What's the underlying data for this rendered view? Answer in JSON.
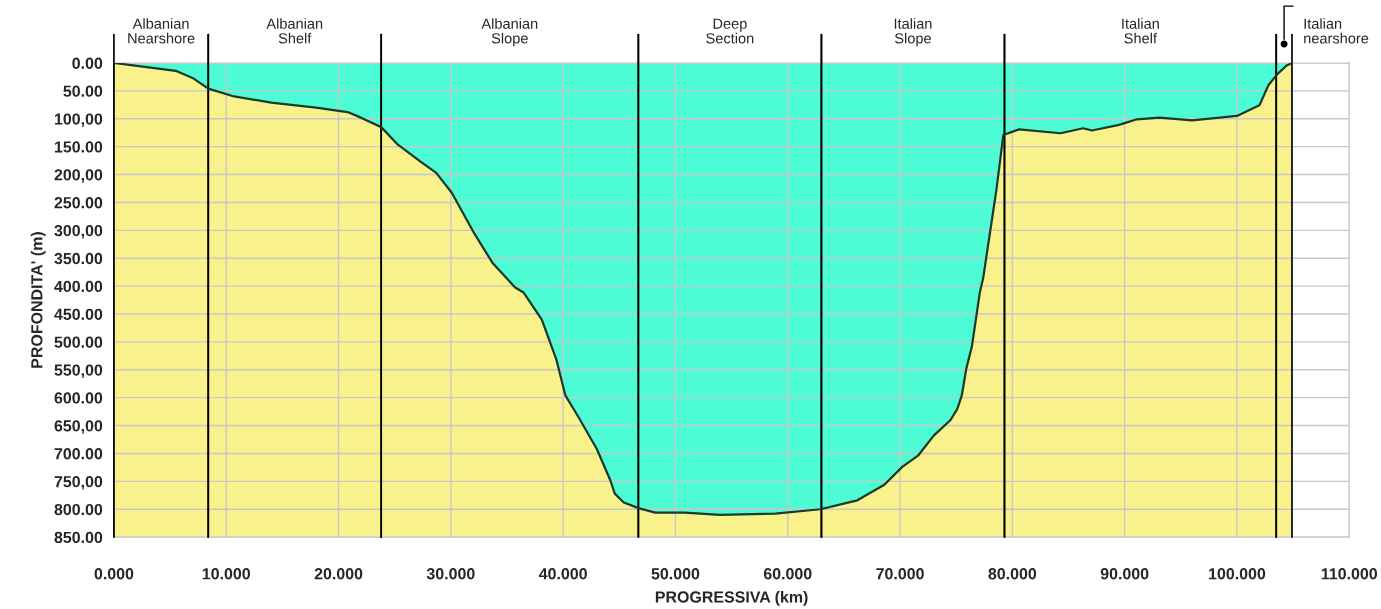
{
  "chart_data": {
    "type": "area",
    "xlabel": "PROGRESSIVA (km)",
    "ylabel": "PROFONDITA' (m)",
    "x": [
      0,
      3.1,
      5.5,
      7.1,
      8.4,
      10.7,
      14,
      18,
      20.8,
      22,
      23.8,
      25.2,
      27.3,
      28.7,
      30.1,
      32.1,
      33.7,
      35.7,
      36.5,
      38.1,
      39.4,
      40.2,
      41.4,
      43,
      44.2,
      44.6,
      45.4,
      46.7,
      48.2,
      50.8,
      54,
      58.9,
      62.9,
      66.2,
      68.6,
      70.2,
      71.6,
      73,
      74.5,
      75.1,
      75.5,
      75.9,
      76.4,
      77.1,
      77.4,
      78.6,
      79.2,
      80.6,
      84.3,
      86.3,
      87.1,
      89.5,
      91.1,
      93.1,
      96,
      100,
      102,
      102.8,
      103.6,
      104.4,
      104.9
    ],
    "series": [
      {
        "color": "#4dfcd4",
        "values": [
          0,
          8,
          14,
          28,
          46,
          60,
          71,
          80,
          88,
          98,
          115,
          145,
          177,
          197,
          233,
          306,
          358,
          402,
          412,
          460,
          532,
          596,
          636,
          692,
          748,
          772,
          788,
          798,
          806,
          806,
          810,
          808,
          800,
          784,
          756,
          724,
          704,
          668,
          640,
          620,
          596,
          548,
          508,
          412,
          386,
          225,
          129,
          119,
          126,
          117,
          121,
          111,
          101,
          98,
          103,
          95,
          76,
          40,
          20,
          5,
          0
        ]
      }
    ],
    "xlim": [
      0,
      110
    ],
    "ylim": [
      850,
      0
    ],
    "xticks": [
      {
        "value": 0,
        "label": "0.000"
      },
      {
        "value": 10,
        "label": "10.000"
      },
      {
        "value": 20,
        "label": "20.000"
      },
      {
        "value": 30,
        "label": "30.000"
      },
      {
        "value": 40,
        "label": "40.000"
      },
      {
        "value": 50,
        "label": "50.000"
      },
      {
        "value": 60,
        "label": "60.000"
      },
      {
        "value": 70,
        "label": "70.000"
      },
      {
        "value": 80,
        "label": "80.000"
      },
      {
        "value": 90,
        "label": "90.000"
      },
      {
        "value": 100,
        "label": "100.000"
      },
      {
        "value": 110,
        "label": "110.000"
      }
    ],
    "yticks": [
      {
        "value": 0,
        "label": "0.00"
      },
      {
        "value": 50,
        "label": "50.00"
      },
      {
        "value": 100,
        "label": "100,00"
      },
      {
        "value": 150,
        "label": "150.00"
      },
      {
        "value": 200,
        "label": "200,00"
      },
      {
        "value": 250,
        "label": "250.00"
      },
      {
        "value": 300,
        "label": "300,00"
      },
      {
        "value": 350,
        "label": "350.00"
      },
      {
        "value": 400,
        "label": "400.00"
      },
      {
        "value": 450,
        "label": "450.00"
      },
      {
        "value": 500,
        "label": "500.00"
      },
      {
        "value": 550,
        "label": "550,00"
      },
      {
        "value": 600,
        "label": "600.00"
      },
      {
        "value": 650,
        "label": "650,00"
      },
      {
        "value": 700,
        "label": "700.00"
      },
      {
        "value": 750,
        "label": "750,00"
      },
      {
        "value": 800,
        "label": "800.00"
      },
      {
        "value": 850,
        "label": "850.00"
      }
    ],
    "bands": [
      {
        "axis": "x",
        "from": 0,
        "to": 8.4,
        "label": "Albanian\nNearshore",
        "color": "#f9f28c"
      },
      {
        "axis": "x",
        "from": 8.4,
        "to": 23.8,
        "label": "Albanian\nShelf",
        "color": "#f9f28c"
      },
      {
        "axis": "x",
        "from": 23.8,
        "to": 46.7,
        "label": "Albanian\nSlope",
        "color": "#f9f28c"
      },
      {
        "axis": "x",
        "from": 46.7,
        "to": 63.0,
        "label": "Deep\nSection",
        "color": "#f9f28c"
      },
      {
        "axis": "x",
        "from": 63.0,
        "to": 79.3,
        "label": "Italian\nSlope",
        "color": "#f9f28c"
      },
      {
        "axis": "x",
        "from": 79.3,
        "to": 103.5,
        "label": "Italian\nShelf",
        "color": "#f9f28c"
      },
      {
        "axis": "x",
        "from": 103.5,
        "to": 104.9,
        "label": "Italian\nnearshore",
        "color": "#f9f28c"
      }
    ],
    "grid": true
  }
}
